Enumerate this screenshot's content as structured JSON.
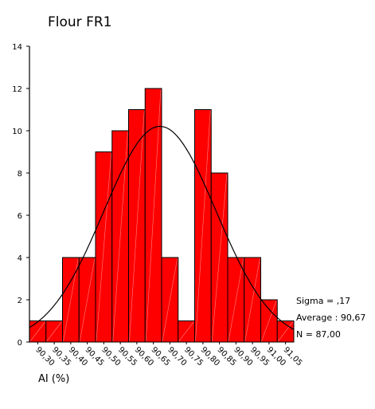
{
  "chart_data": {
    "type": "bar",
    "title": "Flour FR1",
    "xlabel": "AI (%)",
    "ylabel": "",
    "ylim": [
      0,
      14
    ],
    "yticks": [
      0,
      2,
      4,
      6,
      8,
      10,
      12,
      14
    ],
    "categories": [
      "90,30",
      "90,35",
      "90,40",
      "90,45",
      "90,50",
      "90,55",
      "90,60",
      "90,65",
      "90,70",
      "90,75",
      "90,80",
      "90,85",
      "90,90",
      "90,95",
      "91,00",
      "91,05"
    ],
    "values": [
      1,
      1,
      4,
      4,
      9,
      10,
      11,
      12,
      4,
      1,
      11,
      8,
      4,
      4,
      2,
      1
    ],
    "bar_color": "#ff0000",
    "curve": {
      "type": "normal",
      "mean": 90.67,
      "sigma": 0.17,
      "n": 87
    },
    "stats": {
      "sigma_label": "Sigma = ,17",
      "average_label": "Average : 90,67",
      "n_label": "N = 87,00"
    },
    "grid": false,
    "legend": "none"
  }
}
